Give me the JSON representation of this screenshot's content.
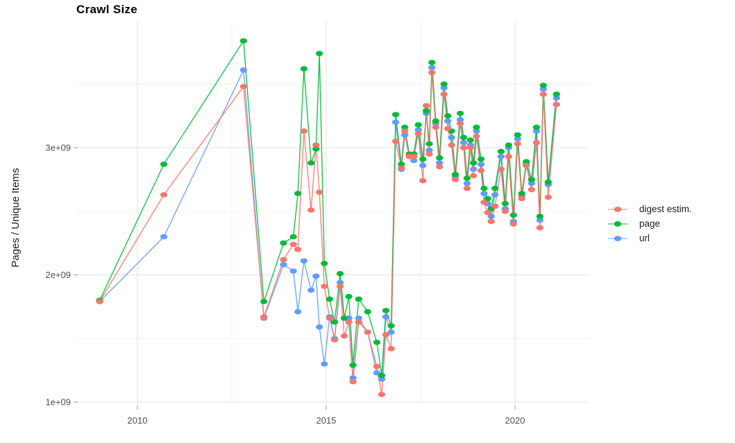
{
  "chart_data": {
    "type": "line",
    "title": "Crawl Size",
    "xlabel": "",
    "ylabel": "Pages / Unique Items",
    "grid": true,
    "legend_position": "right-center",
    "x_ticks": [
      {
        "value": 2010,
        "label": "2010"
      },
      {
        "value": 2015,
        "label": "2015"
      },
      {
        "value": 2020,
        "label": "2020"
      }
    ],
    "y_ticks": [
      {
        "value_billions": 1,
        "label": "1e+09"
      },
      {
        "value_billions": 2,
        "label": "2e+09"
      },
      {
        "value_billions": 3,
        "label": "3e+09"
      }
    ],
    "x_minor_gridlines": [
      2012.5,
      2017.5
    ],
    "y_minor_gridlines_billions": [
      1.5,
      2.5,
      3.5
    ],
    "xlim": [
      2008.4,
      2021.95
    ],
    "ylim_billions": [
      0.97,
      4.0
    ],
    "x_years": [
      2009.0,
      2010.7,
      2012.81,
      2013.35,
      2013.87,
      2014.13,
      2014.25,
      2014.41,
      2014.6,
      2014.73,
      2014.82,
      2014.95,
      2015.09,
      2015.22,
      2015.37,
      2015.48,
      2015.6,
      2015.71,
      2015.86,
      2016.1,
      2016.34,
      2016.47,
      2016.58,
      2016.72,
      2016.84,
      2016.99,
      2017.08,
      2017.2,
      2017.32,
      2017.44,
      2017.56,
      2017.65,
      2017.73,
      2017.8,
      2017.9,
      2018.0,
      2018.12,
      2018.22,
      2018.32,
      2018.42,
      2018.55,
      2018.64,
      2018.73,
      2018.82,
      2018.9,
      2018.98,
      2019.1,
      2019.18,
      2019.28,
      2019.37,
      2019.47,
      2019.63,
      2019.74,
      2019.83,
      2019.96,
      2020.07,
      2020.18,
      2020.3,
      2020.44,
      2020.57,
      2020.66,
      2020.75,
      2020.88,
      2021.1
    ],
    "series": [
      {
        "name": "digest estim.",
        "color": "#F8766D",
        "values_billions": [
          1.79,
          2.63,
          3.48,
          1.67,
          2.12,
          2.24,
          2.2,
          3.13,
          2.51,
          3.02,
          2.65,
          1.91,
          1.66,
          1.49,
          1.91,
          1.52,
          1.63,
          1.16,
          1.63,
          1.55,
          1.28,
          1.06,
          1.53,
          1.42,
          3.05,
          2.84,
          3.13,
          2.93,
          2.93,
          3.11,
          2.74,
          3.33,
          2.95,
          3.59,
          3.16,
          2.85,
          3.42,
          3.15,
          3.02,
          2.75,
          3.19,
          3.0,
          2.68,
          3.0,
          2.78,
          3.09,
          2.82,
          2.57,
          2.49,
          2.42,
          2.54,
          2.83,
          2.5,
          2.93,
          2.4,
          3.03,
          2.6,
          2.86,
          2.67,
          3.04,
          2.37,
          3.42,
          2.61,
          3.34
        ]
      },
      {
        "name": "page",
        "color": "#00BA38",
        "values_billions": [
          1.8,
          2.87,
          3.84,
          1.79,
          2.25,
          2.3,
          2.64,
          3.62,
          2.88,
          2.99,
          3.74,
          2.09,
          1.81,
          1.63,
          2.01,
          1.66,
          1.83,
          1.29,
          1.81,
          1.71,
          1.47,
          1.21,
          1.72,
          1.6,
          3.26,
          2.87,
          3.16,
          2.95,
          2.95,
          3.18,
          2.91,
          3.29,
          3.03,
          3.67,
          3.21,
          2.92,
          3.5,
          3.25,
          3.13,
          2.79,
          3.27,
          3.08,
          2.76,
          3.06,
          2.88,
          3.16,
          2.91,
          2.68,
          2.6,
          2.52,
          2.68,
          2.97,
          2.56,
          3.02,
          2.47,
          3.1,
          2.64,
          2.89,
          2.75,
          3.16,
          2.46,
          3.49,
          2.73,
          3.42
        ]
      },
      {
        "name": "url",
        "color": "#619CFF",
        "values_billions": [
          1.79,
          2.3,
          3.61,
          1.66,
          2.08,
          2.03,
          1.71,
          2.11,
          1.88,
          1.99,
          1.59,
          1.3,
          1.67,
          1.5,
          1.94,
          1.66,
          1.66,
          1.19,
          1.66,
          1.55,
          1.23,
          1.18,
          1.67,
          1.55,
          3.2,
          2.83,
          3.1,
          2.93,
          2.9,
          3.14,
          2.86,
          3.27,
          2.98,
          3.63,
          3.19,
          2.88,
          3.47,
          3.21,
          3.08,
          2.77,
          3.22,
          3.04,
          2.72,
          3.02,
          2.83,
          3.13,
          2.87,
          2.64,
          2.56,
          2.46,
          2.63,
          2.93,
          2.52,
          3.0,
          2.42,
          3.07,
          2.62,
          2.87,
          2.72,
          3.13,
          2.43,
          3.46,
          2.71,
          3.39
        ]
      }
    ]
  }
}
